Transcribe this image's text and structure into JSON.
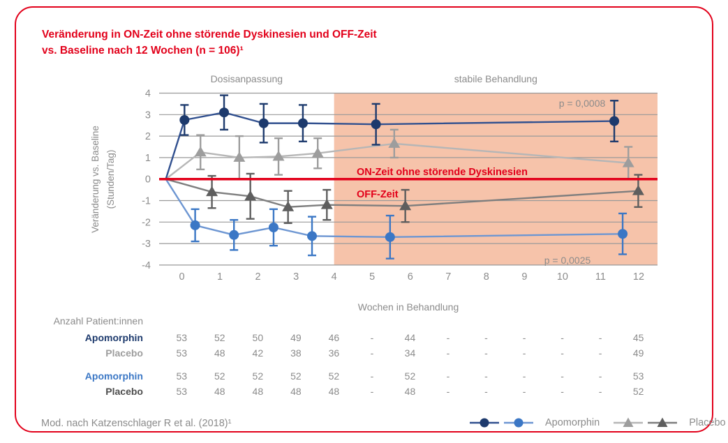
{
  "title": {
    "line1": "Veränderung in ON-Zeit ohne störende Dyskinesien und OFF-Zeit",
    "line2": "vs. Baseline nach 12 Wochen (n = 106)¹"
  },
  "colors": {
    "red": "#e2001a",
    "orange_region": "#f6c3aa",
    "text_gray": "#8b8b8b",
    "grid_gray": "#999999",
    "dark_blue": "#1d3a6d",
    "dark_blue_line": "#31508f",
    "light_blue": "#3b77c5",
    "light_blue_line": "#6d96d2",
    "light_gray": "#9d9d9d",
    "light_gray_line": "#b6b6b6",
    "dark_gray": "#5e5e5e",
    "dark_gray_line": "#7e7e7e",
    "table_dark_label": "#4d4d4d"
  },
  "chart_data": {
    "type": "line",
    "xlabel": "Wochen in Behandlung",
    "ylabel_line1": "Veränderung vs. Baseline",
    "ylabel_line2": "(Stunden/Tag)",
    "ylim": [
      -4,
      4
    ],
    "yticks": [
      4,
      3,
      2,
      1,
      0,
      -1,
      -2,
      -3,
      -4
    ],
    "xticks": [
      0,
      1,
      2,
      3,
      4,
      5,
      6,
      7,
      8,
      9,
      10,
      11,
      12
    ],
    "grid": true,
    "phases": [
      {
        "label": "Dosisanpassung",
        "from_week": 0,
        "to_week": 4,
        "background": "none"
      },
      {
        "label": "stabile Behandlung",
        "from_week": 4,
        "to_week": 12,
        "background": "#f6c3aa"
      }
    ],
    "zero_line": {
      "value": 0,
      "color": "#e2001a"
    },
    "annotations": [
      {
        "id": "on-zeit-label",
        "text": "ON-Zeit ohne störende Dyskinesien",
        "color": "#e2001a"
      },
      {
        "id": "off-zeit-label",
        "text": "OFF-Zeit",
        "color": "#e2001a"
      },
      {
        "id": "p-value-on",
        "text": "p = 0,0008",
        "color": "#8b8b8b"
      },
      {
        "id": "p-value-off",
        "text": "p = 0,0025",
        "color": "#8b8b8b"
      }
    ],
    "measurement_weeks": [
      0,
      1,
      2,
      3,
      4,
      6,
      12
    ],
    "series": [
      {
        "key": "placebo-on",
        "name": "Placebo ON-Zeit ohne störende Dyskinesien",
        "marker": "triangle",
        "colorKey": "light_gray",
        "x_plot": [
          -0.42,
          0.49,
          1.51,
          2.54,
          3.57,
          5.58,
          11.73
        ],
        "y": [
          0,
          1.25,
          1.0,
          1.05,
          1.2,
          1.65,
          0.75
        ],
        "err": [
          0,
          0.8,
          1.0,
          0.85,
          0.7,
          0.65,
          0.75
        ]
      },
      {
        "key": "placebo-off",
        "name": "Placebo OFF-Zeit",
        "marker": "triangle",
        "colorKey": "dark_gray",
        "x_plot": [
          -0.42,
          0.79,
          1.8,
          2.79,
          3.81,
          5.87,
          11.99
        ],
        "y": [
          0,
          -0.6,
          -0.8,
          -1.3,
          -1.2,
          -1.25,
          -0.55
        ],
        "err": [
          0,
          0.75,
          1.05,
          0.75,
          0.7,
          0.75,
          0.75
        ]
      },
      {
        "key": "apomorphin-off",
        "name": "Apomorphin OFF-Zeit",
        "marker": "circle",
        "colorKey": "light_blue",
        "x_plot": [
          -0.42,
          0.35,
          1.37,
          2.41,
          3.42,
          5.47,
          11.58
        ],
        "y": [
          0,
          -2.15,
          -2.6,
          -2.25,
          -2.65,
          -2.7,
          -2.55
        ],
        "err": [
          0,
          0.75,
          0.7,
          0.85,
          0.9,
          1.0,
          0.95
        ]
      },
      {
        "key": "apomorphin-on",
        "name": "Apomorphin ON-Zeit ohne störende Dyskinesien",
        "marker": "circle",
        "colorKey": "dark_blue",
        "x_plot": [
          -0.42,
          0.07,
          1.11,
          2.15,
          3.18,
          5.1,
          11.36
        ],
        "y": [
          0,
          2.75,
          3.1,
          2.6,
          2.6,
          2.55,
          2.7
        ],
        "err": [
          0,
          0.7,
          0.8,
          0.9,
          0.85,
          0.95,
          0.95
        ]
      }
    ]
  },
  "table": {
    "caption": "Anzahl Patient:innen",
    "columns_weeks": [
      0,
      1,
      2,
      3,
      4,
      5,
      6,
      7,
      8,
      9,
      10,
      11,
      12
    ],
    "rows": [
      {
        "key": "apomorphin-on",
        "label": "Apomorphin",
        "colorKey": "dark_blue",
        "values": [
          "53",
          "52",
          "50",
          "49",
          "46",
          "-",
          "44",
          "-",
          "-",
          "-",
          "-",
          "-",
          "45"
        ]
      },
      {
        "key": "placebo-on",
        "label": "Placebo",
        "colorKey": "light_gray",
        "values": [
          "53",
          "48",
          "42",
          "38",
          "36",
          "-",
          "34",
          "-",
          "-",
          "-",
          "-",
          "-",
          "49"
        ]
      },
      {
        "key": "apomorphin-off",
        "label": "Apomorphin",
        "colorKey": "light_blue",
        "values": [
          "53",
          "52",
          "52",
          "52",
          "52",
          "-",
          "52",
          "-",
          "-",
          "-",
          "-",
          "-",
          "53"
        ]
      },
      {
        "key": "placebo-off",
        "label": "Placebo",
        "colorKey": "table_dark_label",
        "values": [
          "53",
          "48",
          "48",
          "48",
          "48",
          "-",
          "48",
          "-",
          "-",
          "-",
          "-",
          "-",
          "52"
        ]
      }
    ]
  },
  "legend": {
    "groups": [
      {
        "label": "Apomorphin",
        "entries": [
          {
            "marker": "circle",
            "colorKey": "dark_blue"
          },
          {
            "marker": "circle",
            "colorKey": "light_blue"
          }
        ]
      },
      {
        "label": "Placebo",
        "entries": [
          {
            "marker": "triangle",
            "colorKey": "light_gray"
          },
          {
            "marker": "triangle",
            "colorKey": "dark_gray"
          }
        ]
      }
    ]
  },
  "footer": {
    "source": "Mod. nach Katzenschlager R et al. (2018)¹"
  }
}
